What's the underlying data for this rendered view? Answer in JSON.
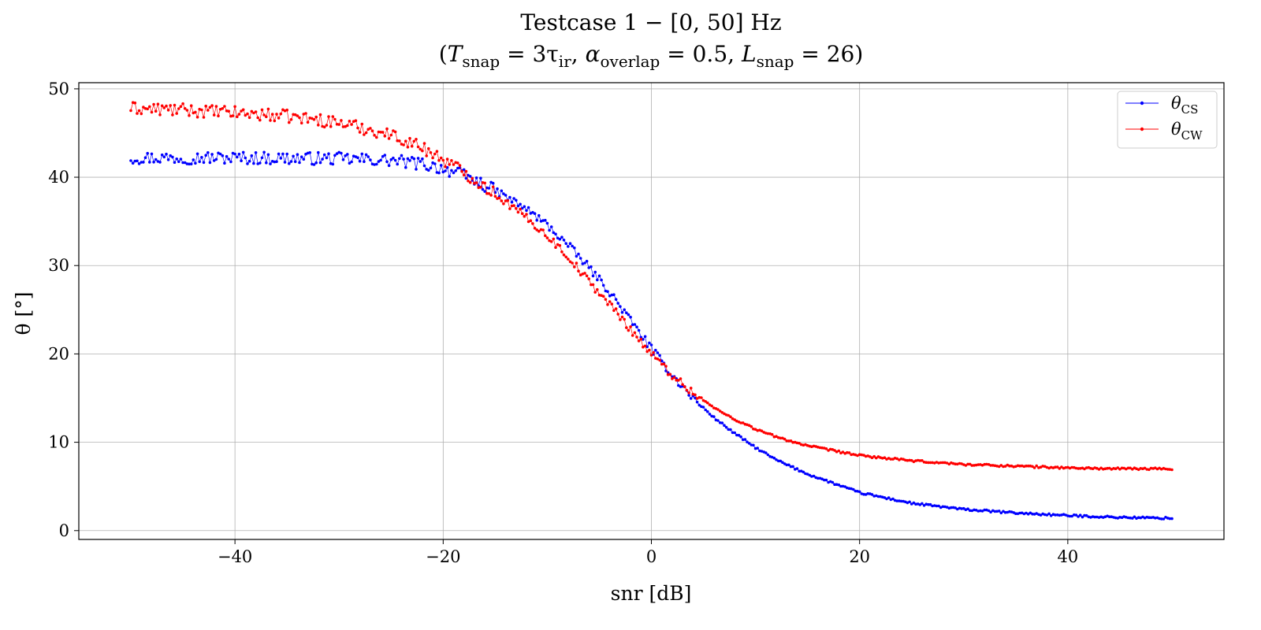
{
  "chart_data": {
    "type": "line",
    "title": "Testcase 1 − [0, 50] Hz",
    "subtitle": "(Tₛₙₐₚ = 3τᵢᵣ,   αₒᵥₑᵣₗₐₚ = 0.5,   Lₛₙₐₚ = 26)",
    "title_parts": {
      "line1": "Testcase 1 − [0, 50] Hz",
      "t_base": "T",
      "t_sub": "snap",
      "t_eq": " = 3τ",
      "t_ir": "ir",
      "t_comma": ",",
      "a_base": "α",
      "a_sub": "overlap",
      "a_eq": " = 0.5,",
      "l_base": "L",
      "l_sub": "snap",
      "l_eq": " = 26"
    },
    "xlabel": "snr [dB]",
    "ylabel": "θ [°]",
    "xlim": [
      -55,
      55
    ],
    "ylim": [
      -1,
      50.7
    ],
    "xticks": [
      -40,
      -20,
      0,
      20,
      40
    ],
    "yticks": [
      0,
      10,
      20,
      30,
      40,
      50
    ],
    "xtick_labels": [
      "−40",
      "−20",
      "0",
      "20",
      "40"
    ],
    "ytick_labels": [
      "0",
      "10",
      "20",
      "30",
      "40",
      "50"
    ],
    "grid": true,
    "legend_position": "top-right",
    "x_range": [
      -50,
      50
    ],
    "x_step": 0.2,
    "series": [
      {
        "name": "θCS",
        "name_base": "θ",
        "name_sub": "CS",
        "color": "#0000ff",
        "anchor_x": [
          -50,
          -40,
          -30,
          -25,
          -22,
          -20,
          -18,
          -15,
          -12,
          -10,
          -8,
          -6,
          -4,
          -2,
          0,
          2,
          4,
          6,
          8,
          10,
          12,
          15,
          20,
          25,
          30,
          35,
          40,
          45,
          50
        ],
        "anchor_y": [
          42.2,
          42.2,
          42.1,
          41.9,
          41.5,
          41.0,
          40.2,
          38.5,
          36.4,
          34.6,
          32.3,
          29.8,
          27.0,
          23.8,
          20.6,
          17.6,
          15.0,
          12.8,
          11.0,
          9.4,
          8.0,
          6.4,
          4.3,
          3.1,
          2.4,
          2.0,
          1.7,
          1.5,
          1.4
        ],
        "noise_low_snr": 0.45
      },
      {
        "name": "θCW",
        "name_base": "θ",
        "name_sub": "CW",
        "color": "#ff0000",
        "anchor_x": [
          -50,
          -45,
          -40,
          -35,
          -30,
          -25,
          -22,
          -20,
          -18,
          -15,
          -12,
          -10,
          -8,
          -6,
          -4,
          -2,
          0,
          2,
          4,
          6,
          8,
          10,
          12,
          15,
          20,
          25,
          30,
          35,
          40,
          45,
          50
        ],
        "anchor_y": [
          47.8,
          47.6,
          47.3,
          46.9,
          46.2,
          44.8,
          43.4,
          42.0,
          40.6,
          38.1,
          35.4,
          33.4,
          31.0,
          28.2,
          25.6,
          22.8,
          20.0,
          17.6,
          15.6,
          13.9,
          12.6,
          11.5,
          10.6,
          9.6,
          8.5,
          7.9,
          7.5,
          7.3,
          7.1,
          7.0,
          7.0
        ],
        "noise_low_snr": 0.45
      }
    ]
  }
}
